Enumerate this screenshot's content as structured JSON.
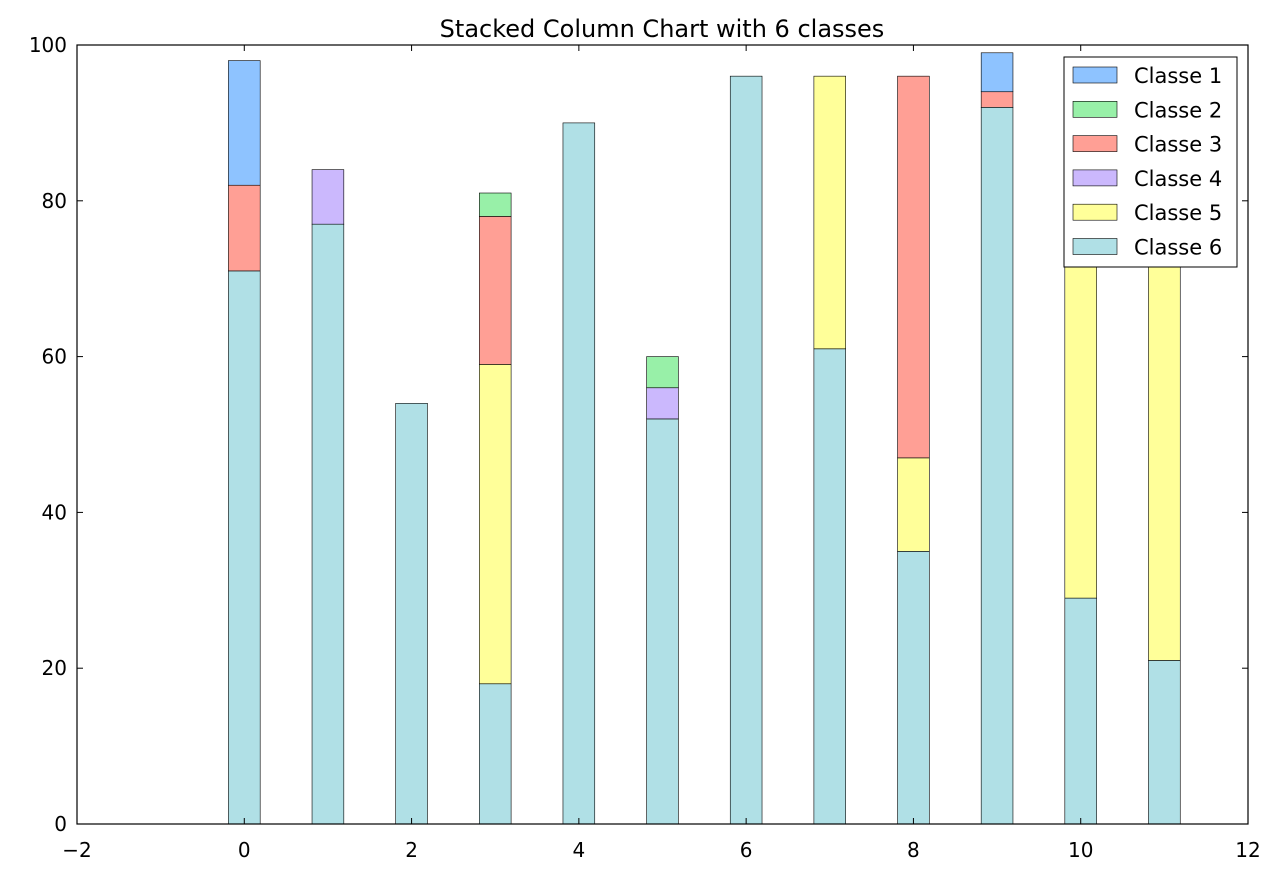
{
  "chart_data": {
    "type": "bar",
    "stacked": true,
    "title": "Stacked Column Chart with 6 classes",
    "xlabel": "",
    "ylabel": "",
    "xlim": [
      -2,
      12
    ],
    "ylim": [
      0,
      100
    ],
    "xticks": [
      -2,
      0,
      2,
      4,
      6,
      8,
      10,
      12
    ],
    "xtick_labels": [
      "−2",
      "0",
      "2",
      "4",
      "6",
      "8",
      "10",
      "12"
    ],
    "yticks": [
      0,
      20,
      40,
      60,
      80,
      100
    ],
    "ytick_labels": [
      "0",
      "20",
      "40",
      "60",
      "80",
      "100"
    ],
    "grid": false,
    "legend_position": "top-right",
    "x": [
      0,
      1,
      2,
      3,
      4,
      5,
      6,
      7,
      8,
      9,
      10,
      11
    ],
    "series": [
      {
        "name": "Classe 6",
        "color": "#b0e0e6",
        "values": [
          71,
          77,
          54,
          18,
          90,
          52,
          96,
          61,
          35,
          92,
          29,
          21
        ]
      },
      {
        "name": "Classe 5",
        "color": "#ffff99",
        "values": [
          0,
          0,
          0,
          41,
          0,
          0,
          0,
          35,
          12,
          0,
          55,
          56
        ]
      },
      {
        "name": "Classe 4",
        "color": "#cbb8fd",
        "values": [
          0,
          7,
          0,
          0,
          0,
          4,
          0,
          0,
          0,
          0,
          0,
          0
        ]
      },
      {
        "name": "Classe 3",
        "color": "#ff9f95",
        "values": [
          11,
          0,
          0,
          19,
          0,
          0,
          0,
          0,
          49,
          2,
          0,
          0
        ]
      },
      {
        "name": "Classe 2",
        "color": "#98f0a8",
        "values": [
          0,
          0,
          0,
          3,
          0,
          4,
          0,
          0,
          0,
          0,
          0,
          0
        ]
      },
      {
        "name": "Classe 1",
        "color": "#8ec3ff",
        "values": [
          16,
          0,
          0,
          0,
          0,
          0,
          0,
          0,
          0,
          5,
          0,
          0
        ]
      }
    ],
    "legend_order": [
      "Classe 1",
      "Classe 2",
      "Classe 3",
      "Classe 4",
      "Classe 5",
      "Classe 6"
    ]
  }
}
